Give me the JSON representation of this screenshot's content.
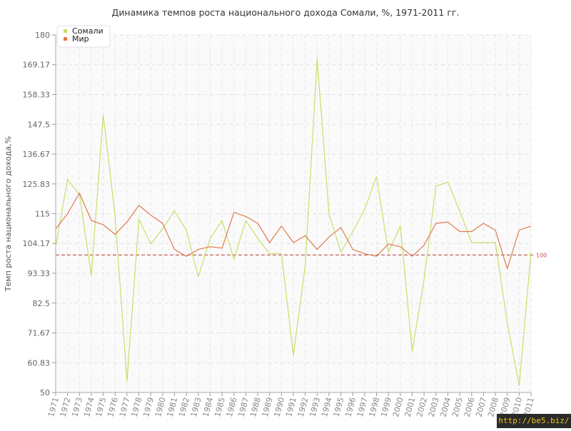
{
  "chart_data": {
    "type": "line",
    "title": "Динамика темпов роста национального дохода Сомали, %, 1971-2011 гг.",
    "ylabel": "Темп роста национального дохода,%",
    "xlabel": "",
    "ylim": [
      50,
      180
    ],
    "yticks": [
      "50",
      "60.83",
      "71.67",
      "82.5",
      "93.33",
      "104.17",
      "115",
      "125.83",
      "136.67",
      "147.5",
      "158.33",
      "169.17",
      "180"
    ],
    "x": [
      "1971",
      "1972",
      "1973",
      "1974",
      "1975",
      "1976",
      "1977",
      "1978",
      "1979",
      "1980",
      "1981",
      "1982",
      "1983",
      "1984",
      "1985",
      "1986",
      "1987",
      "1988",
      "1989",
      "1990",
      "1991",
      "1992",
      "1993",
      "1994",
      "1995",
      "1996",
      "1997",
      "1998",
      "1999",
      "2000",
      "2001",
      "2002",
      "2003",
      "2004",
      "2005",
      "2006",
      "2007",
      "2008",
      "2009",
      "2010",
      "2011"
    ],
    "series": [
      {
        "name": "Сомали",
        "color": "#c6e06a",
        "values": [
          103,
          127.5,
          122,
          92.5,
          151,
          114,
          54,
          113,
          104,
          109.5,
          116,
          109,
          92,
          106,
          112.5,
          98.5,
          112.5,
          106,
          100.5,
          100.5,
          63.5,
          96,
          171.5,
          115,
          101,
          108.5,
          116.5,
          128.5,
          101,
          110.5,
          65,
          91,
          125,
          126.5,
          116,
          104.5,
          104.5,
          104.5,
          75.5,
          52.5,
          101
        ]
      },
      {
        "name": "Мир",
        "color": "#e07a4e",
        "values": [
          109.5,
          115,
          122.5,
          112.5,
          111,
          107.5,
          112,
          118,
          114.5,
          111.5,
          102,
          99.5,
          102,
          103,
          102.5,
          115.5,
          114,
          111.5,
          104.5,
          110.5,
          104.5,
          107,
          102,
          106.5,
          110,
          102,
          100.5,
          99.5,
          104,
          103,
          99.5,
          103.5,
          111.5,
          112,
          108.5,
          108.5,
          111.5,
          109,
          95,
          109,
          110.5
        ]
      }
    ],
    "reference_line": {
      "value": 100,
      "label": "100",
      "color": "#c0504d",
      "style": "dashed"
    },
    "grid": true,
    "legend_position": "top-left",
    "watermark": "http://be5.biz/"
  }
}
